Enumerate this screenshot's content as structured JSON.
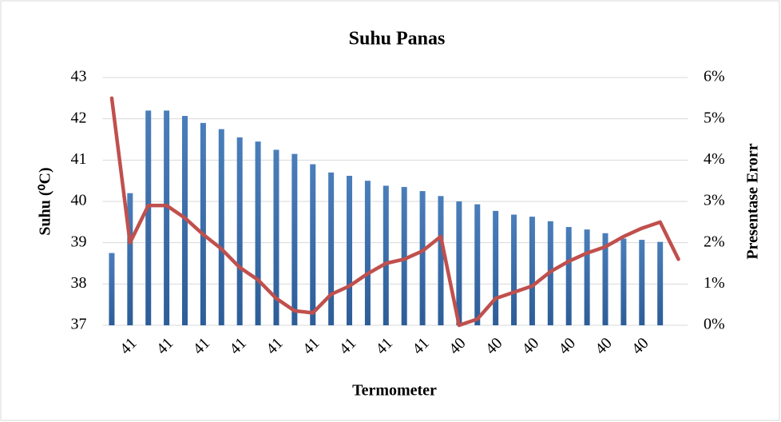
{
  "chart_data": {
    "type": "bar_line",
    "title": "Suhu Panas",
    "xlabel": "Termometer",
    "ylabel": "Suhu (⁰C)",
    "y2label": "Presentase Erorr",
    "categories": [
      null,
      "41",
      null,
      "41",
      null,
      "41",
      null,
      "41",
      null,
      "41",
      null,
      "41",
      null,
      "41",
      null,
      "41",
      null,
      "41",
      null,
      "40",
      null,
      "40",
      null,
      "40",
      null,
      "40",
      null,
      "40",
      null,
      "40",
      null,
      null
    ],
    "series": [
      {
        "name": "Suhu",
        "type": "bar",
        "color": "#4a7ebb",
        "axis": "y",
        "values": [
          38.75,
          40.2,
          42.2,
          42.2,
          42.07,
          41.9,
          41.75,
          41.55,
          41.45,
          41.25,
          41.15,
          40.9,
          40.7,
          40.62,
          40.5,
          40.38,
          40.35,
          40.25,
          40.13,
          40.0,
          39.93,
          39.77,
          39.68,
          39.63,
          39.52,
          39.38,
          39.32,
          39.23,
          39.1,
          39.07,
          39.02,
          null
        ]
      },
      {
        "name": "Presentase Erorr",
        "type": "line",
        "color": "#c0504d",
        "axis": "y2",
        "values": [
          5.5,
          2.0,
          2.9,
          2.9,
          2.6,
          2.2,
          1.85,
          1.4,
          1.1,
          0.65,
          0.35,
          0.3,
          0.75,
          0.95,
          1.25,
          1.5,
          1.6,
          1.8,
          2.15,
          0,
          0.15,
          0.65,
          0.8,
          0.95,
          1.3,
          1.55,
          1.75,
          1.9,
          2.15,
          2.35,
          2.5,
          1.6
        ]
      }
    ],
    "ylim": [
      37,
      43
    ],
    "yticks": [
      37,
      38,
      39,
      40,
      41,
      42,
      43
    ],
    "y2lim": [
      0,
      6
    ],
    "y2ticks": [
      {
        "value": 0,
        "label": "0%"
      },
      {
        "value": 1,
        "label": "1%"
      },
      {
        "value": 2,
        "label": "2%"
      },
      {
        "value": 3,
        "label": "3%"
      },
      {
        "value": 4,
        "label": "4%"
      },
      {
        "value": 5,
        "label": "5%"
      },
      {
        "value": 6,
        "label": "6%"
      }
    ],
    "grid": true
  }
}
